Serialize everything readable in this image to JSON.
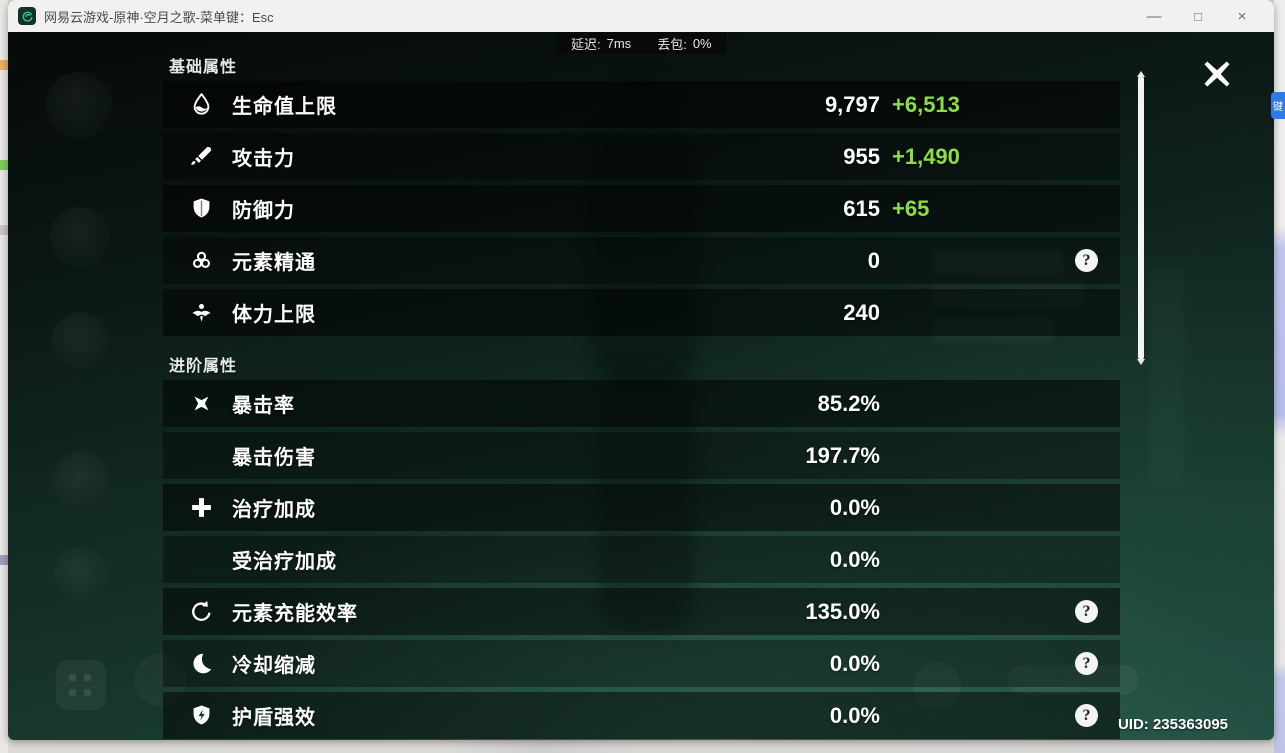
{
  "window": {
    "title": "网易云游戏-原神·空月之歌-菜单键：Esc",
    "controls": {
      "minimize": "—",
      "maximize": "□",
      "close": "×"
    }
  },
  "network": {
    "latency_label": "延迟:",
    "latency_value": "7ms",
    "loss_label": "丢包:",
    "loss_value": "0%"
  },
  "panel": {
    "sections": [
      {
        "title": "基础属性",
        "rows": [
          {
            "icon": "hp-drop-icon",
            "label": "生命值上限",
            "value": "9,797",
            "bonus": "+6,513",
            "help": false
          },
          {
            "icon": "attack-sword-icon",
            "label": "攻击力",
            "value": "955",
            "bonus": "+1,490",
            "help": false
          },
          {
            "icon": "defense-shield-icon",
            "label": "防御力",
            "value": "615",
            "bonus": "+65",
            "help": false
          },
          {
            "icon": "elemental-mastery-icon",
            "label": "元素精通",
            "value": "0",
            "bonus": "",
            "help": true
          },
          {
            "icon": "stamina-icon",
            "label": "体力上限",
            "value": "240",
            "bonus": "",
            "help": false
          }
        ]
      },
      {
        "title": "进阶属性",
        "rows": [
          {
            "icon": "crit-rate-icon",
            "label": "暴击率",
            "value": "85.2%",
            "bonus": "",
            "help": false
          },
          {
            "icon": "",
            "label": "暴击伤害",
            "value": "197.7%",
            "bonus": "",
            "help": false
          },
          {
            "icon": "healing-plus-icon",
            "label": "治疗加成",
            "value": "0.0%",
            "bonus": "",
            "help": false
          },
          {
            "icon": "",
            "label": "受治疗加成",
            "value": "0.0%",
            "bonus": "",
            "help": false
          },
          {
            "icon": "energy-recharge-icon",
            "label": "元素充能效率",
            "value": "135.0%",
            "bonus": "",
            "help": true
          },
          {
            "icon": "cooldown-moon-icon",
            "label": "冷却缩减",
            "value": "0.0%",
            "bonus": "",
            "help": true
          },
          {
            "icon": "shield-strength-icon",
            "label": "护盾强效",
            "value": "0.0%",
            "bonus": "",
            "help": true
          }
        ]
      }
    ],
    "help_glyph": "?"
  },
  "uid": {
    "text": "UID: 235363095"
  },
  "side_tab": {
    "label": "键"
  },
  "colors": {
    "bonus_green": "#8ae03f",
    "panel_row_dark": "rgba(0,0,0,0.50)",
    "background_teal": "#1d443a",
    "titlebar_bg": "#f2f1ef",
    "side_tab_blue": "#2d7be9"
  }
}
